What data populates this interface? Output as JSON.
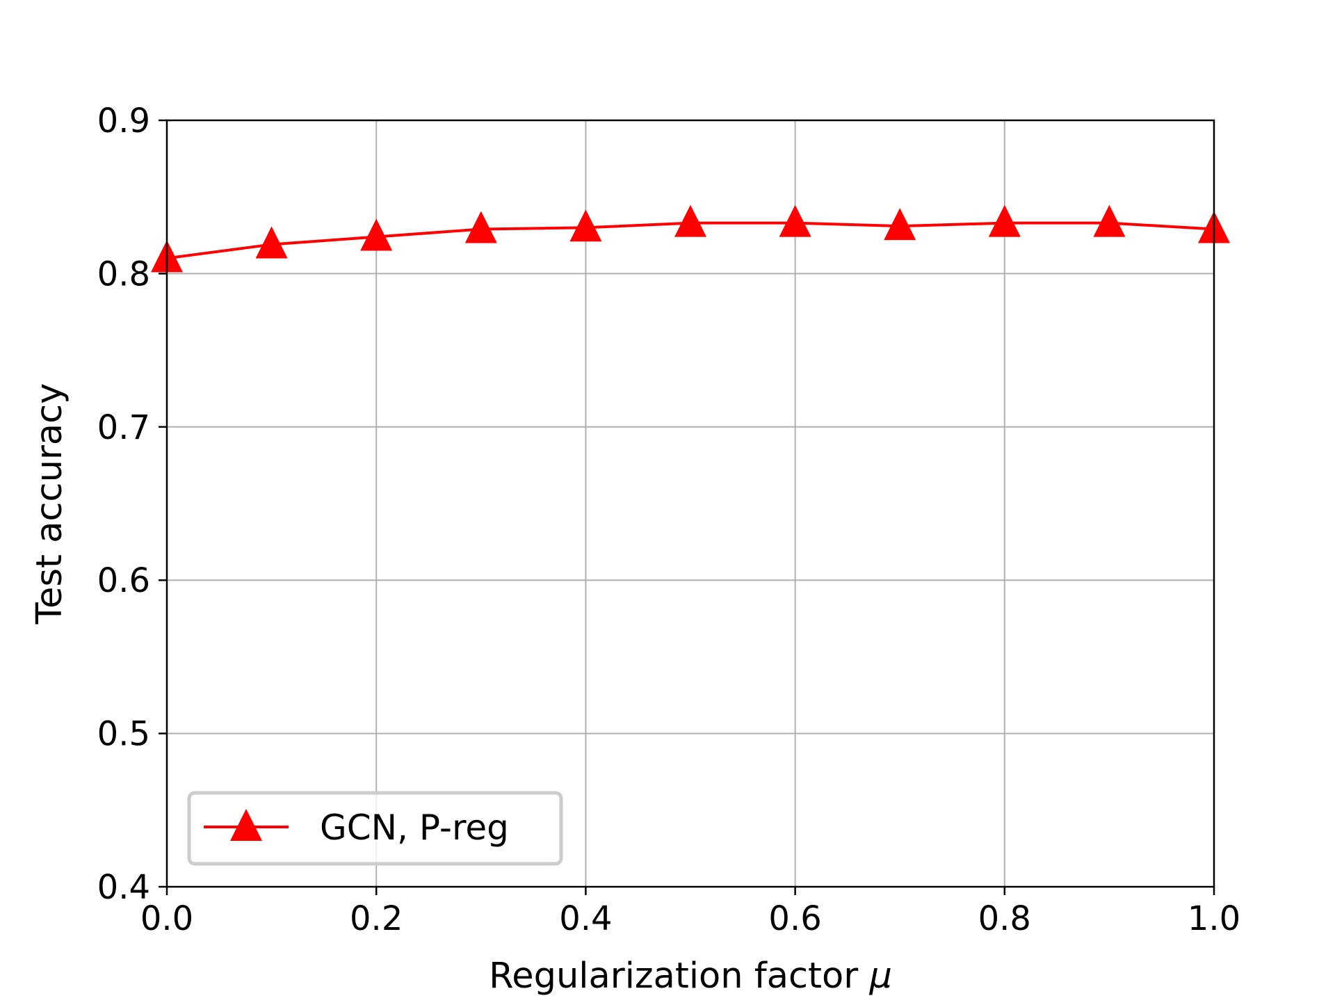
{
  "chart_data": {
    "type": "line",
    "xlabel_text": "Regularization factor ",
    "xlabel_symbol": "μ",
    "ylabel": "Test accuracy",
    "xlim": [
      0.0,
      1.0
    ],
    "ylim": [
      0.4,
      0.9
    ],
    "x_ticks": [
      "0.0",
      "0.2",
      "0.4",
      "0.6",
      "0.8",
      "1.0"
    ],
    "y_ticks": [
      "0.4",
      "0.5",
      "0.6",
      "0.7",
      "0.8",
      "0.9"
    ],
    "grid": true,
    "legend_position": "lower-left",
    "series": [
      {
        "name": "GCN, P-reg",
        "color": "#ff0000",
        "marker": "triangle",
        "x": [
          0.0,
          0.1,
          0.2,
          0.3,
          0.4,
          0.5,
          0.6,
          0.7,
          0.8,
          0.9,
          1.0
        ],
        "y": [
          0.81,
          0.819,
          0.824,
          0.829,
          0.83,
          0.833,
          0.833,
          0.831,
          0.833,
          0.833,
          0.829
        ]
      }
    ]
  }
}
